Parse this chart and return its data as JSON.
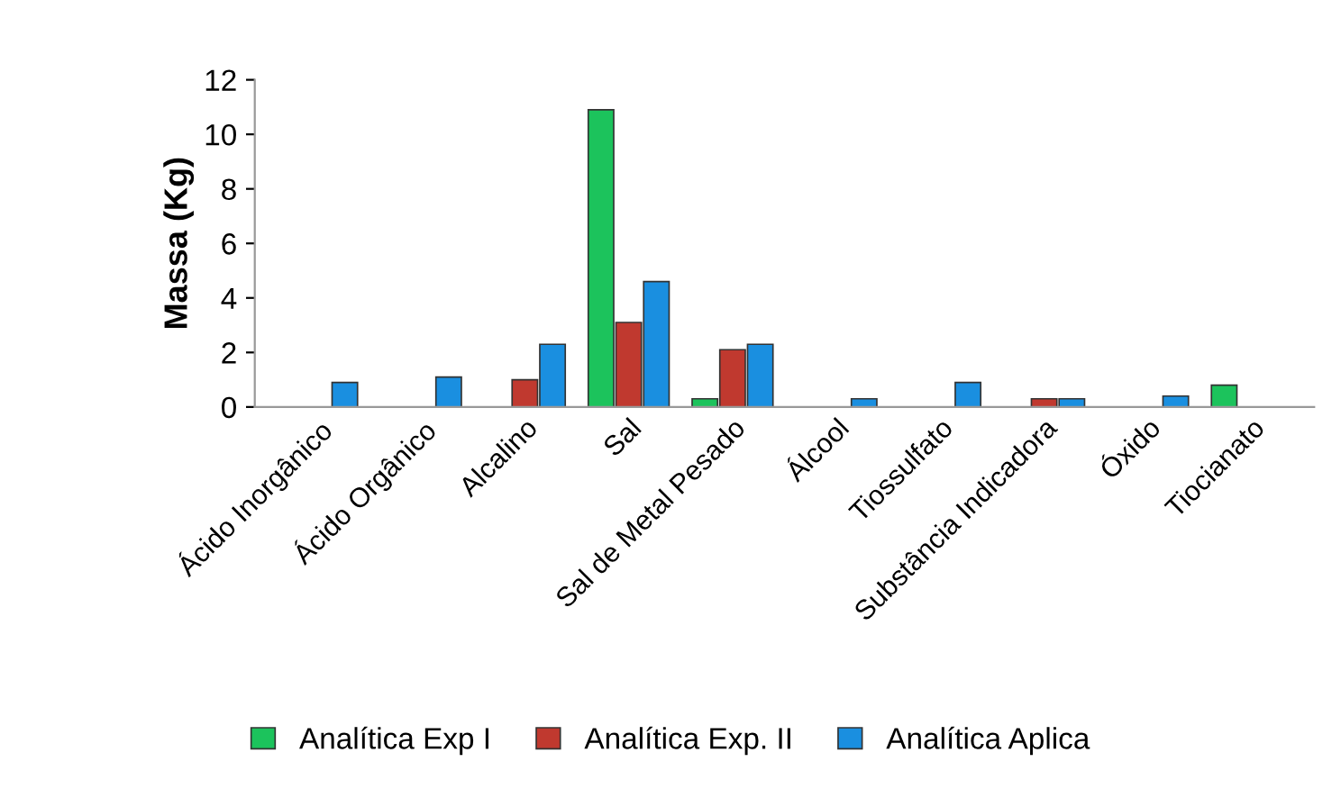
{
  "chart_data": {
    "type": "bar",
    "ylabel": "Massa (Kg)",
    "categories": [
      "Ácido Inorgânico",
      "Ácido Orgânico",
      "Alcalino",
      "Sal",
      "Sal de Metal Pesado",
      "Álcool",
      "Tiossulfato",
      "Substância Indicadora",
      "Óxido",
      "Tiocianato"
    ],
    "series": [
      {
        "name": "Analítica Exp I",
        "color": "#1cc35c",
        "values": [
          null,
          null,
          null,
          10.9,
          0.3,
          null,
          null,
          null,
          null,
          0.8
        ]
      },
      {
        "name": "Analítica Exp. II",
        "color": "#c0392f",
        "values": [
          null,
          null,
          1.0,
          3.1,
          2.1,
          null,
          null,
          0.3,
          null,
          null
        ]
      },
      {
        "name": "Analítica Aplica",
        "color": "#1a8fe0",
        "values": [
          0.9,
          1.1,
          2.3,
          4.6,
          2.3,
          0.3,
          0.9,
          0.3,
          0.4,
          null
        ]
      }
    ],
    "ylim": [
      0,
      12
    ],
    "yticks": [
      0,
      2,
      4,
      6,
      8,
      10,
      12
    ],
    "grid": false,
    "legend": "bottom"
  }
}
